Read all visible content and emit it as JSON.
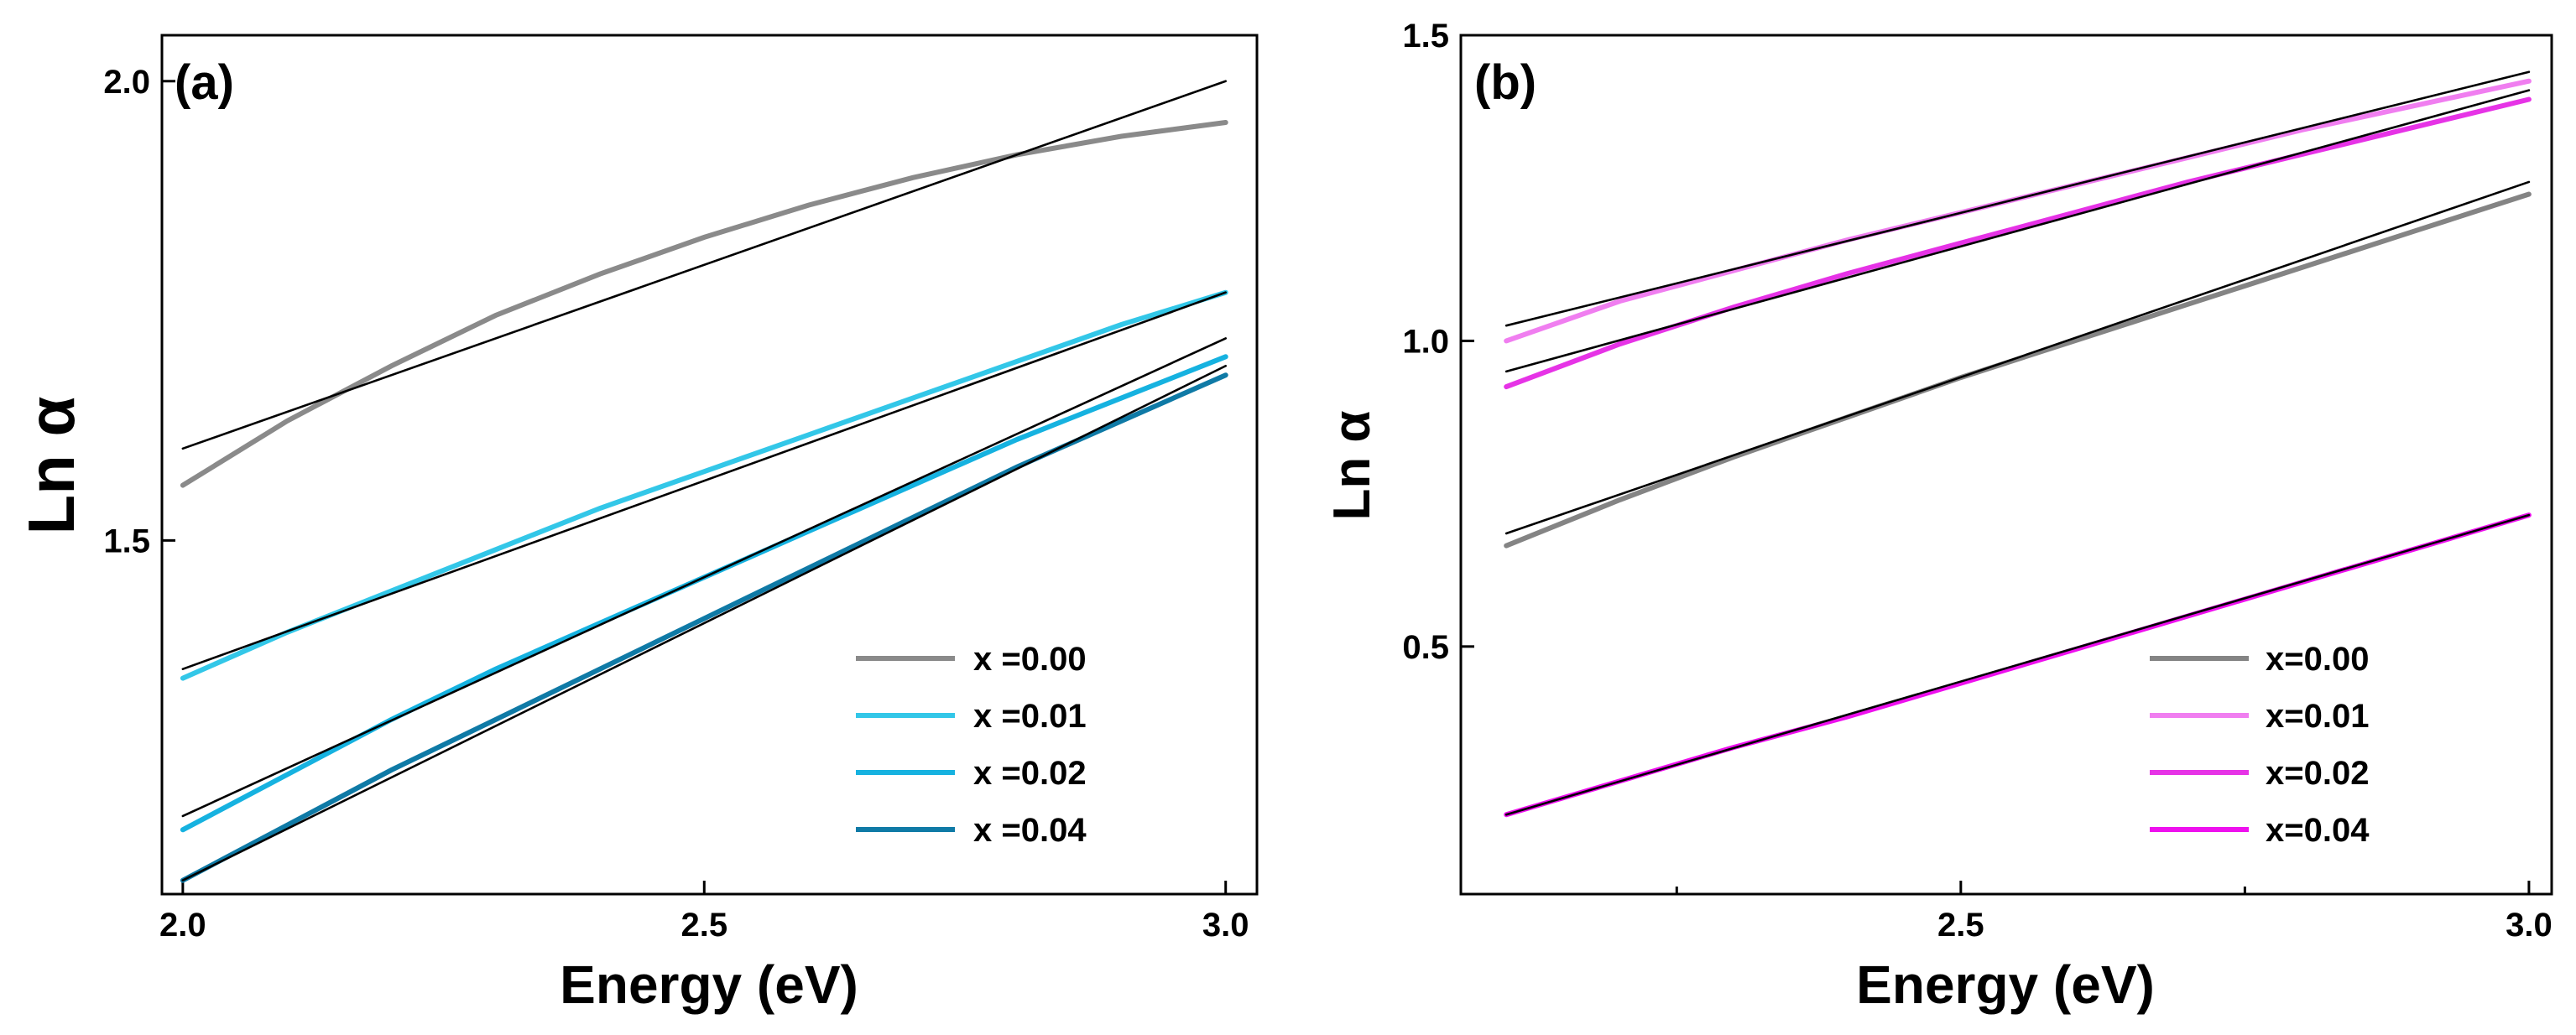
{
  "chart_data": [
    {
      "type": "line",
      "panel_label": "(a)",
      "xlabel": "Energy (eV)",
      "ylabel": "Ln α",
      "xlim": [
        1.98,
        3.03
      ],
      "ylim": [
        1.115,
        2.05
      ],
      "xticks": [
        2.0,
        2.5,
        3.0
      ],
      "xtick_labels": [
        "2.0",
        "2.5",
        "3.0"
      ],
      "yticks": [
        1.5,
        2.0
      ],
      "ytick_labels": [
        "1.5",
        "2.0"
      ],
      "legend_position": "bottom-right",
      "series": [
        {
          "name": "x =0.00",
          "color": "#8a8a8a",
          "x": [
            2.0,
            2.1,
            2.2,
            2.3,
            2.4,
            2.5,
            2.6,
            2.7,
            2.8,
            2.9,
            3.0
          ],
          "y": [
            1.56,
            1.63,
            1.69,
            1.745,
            1.79,
            1.83,
            1.865,
            1.895,
            1.92,
            1.94,
            1.955
          ],
          "fit": [
            1.6,
            2.0
          ]
        },
        {
          "name": "x =0.01",
          "color": "#33c7e8",
          "x": [
            2.0,
            2.1,
            2.2,
            2.3,
            2.4,
            2.5,
            2.6,
            2.7,
            2.8,
            2.9,
            3.0
          ],
          "y": [
            1.35,
            1.4,
            1.445,
            1.49,
            1.535,
            1.575,
            1.615,
            1.655,
            1.695,
            1.735,
            1.77
          ],
          "fit": [
            1.36,
            1.77
          ]
        },
        {
          "name": "x =0.02",
          "color": "#16b2e0",
          "x": [
            2.0,
            2.1,
            2.2,
            2.3,
            2.4,
            2.5,
            2.6,
            2.7,
            2.8,
            2.9,
            3.0
          ],
          "y": [
            1.185,
            1.245,
            1.305,
            1.36,
            1.41,
            1.46,
            1.51,
            1.56,
            1.61,
            1.655,
            1.7
          ],
          "fit": [
            1.2,
            1.72
          ]
        },
        {
          "name": "x =0.04",
          "color": "#0f7aa6",
          "x": [
            2.0,
            2.1,
            2.2,
            2.3,
            2.4,
            2.5,
            2.6,
            2.7,
            2.8,
            2.9,
            3.0
          ],
          "y": [
            1.13,
            1.19,
            1.25,
            1.305,
            1.36,
            1.415,
            1.47,
            1.525,
            1.58,
            1.63,
            1.68
          ],
          "fit": [
            1.13,
            1.69
          ]
        }
      ]
    },
    {
      "type": "line",
      "panel_label": "(b)",
      "xlabel": "Energy (eV)",
      "ylabel": "Ln α",
      "xlim": [
        2.06,
        3.02
      ],
      "ylim": [
        0.095,
        1.5
      ],
      "xticks": [
        2.5,
        3.0
      ],
      "xtick_labels": [
        "2.5",
        "3.0"
      ],
      "minor_xticks": [
        2.25,
        2.75
      ],
      "yticks": [
        0.5,
        1.0,
        1.5
      ],
      "ytick_labels": [
        "0.5",
        "1.0",
        "1.5"
      ],
      "legend_position": "bottom-right",
      "series": [
        {
          "name": "x=0.00",
          "color": "#848484",
          "x": [
            2.1,
            2.2,
            2.3,
            2.4,
            2.5,
            2.6,
            2.7,
            2.8,
            2.9,
            3.0
          ],
          "y": [
            0.665,
            0.74,
            0.81,
            0.875,
            0.94,
            1.0,
            1.06,
            1.12,
            1.18,
            1.24
          ],
          "fit": [
            0.685,
            1.26
          ]
        },
        {
          "name": "x=0.01",
          "color": "#f07ef0",
          "x": [
            2.1,
            2.2,
            2.3,
            2.4,
            2.5,
            2.6,
            2.7,
            2.8,
            2.9,
            3.0
          ],
          "y": [
            1.0,
            1.065,
            1.115,
            1.165,
            1.21,
            1.255,
            1.3,
            1.345,
            1.385,
            1.425
          ],
          "fit": [
            1.025,
            1.44
          ]
        },
        {
          "name": "x=0.02",
          "color": "#e633e6",
          "x": [
            2.1,
            2.2,
            2.3,
            2.4,
            2.5,
            2.6,
            2.7,
            2.8,
            2.9,
            3.0
          ],
          "y": [
            0.925,
            0.995,
            1.055,
            1.11,
            1.16,
            1.21,
            1.26,
            1.305,
            1.35,
            1.395
          ],
          "fit": [
            0.95,
            1.41
          ]
        },
        {
          "name": "x=0.04",
          "color": "#ee10ee",
          "x": [
            2.1,
            2.2,
            2.3,
            2.4,
            2.5,
            2.6,
            2.7,
            2.8,
            2.9,
            3.0
          ],
          "y": [
            0.225,
            0.28,
            0.335,
            0.385,
            0.44,
            0.495,
            0.55,
            0.605,
            0.66,
            0.715
          ],
          "fit": [
            0.225,
            0.715
          ]
        }
      ]
    }
  ]
}
